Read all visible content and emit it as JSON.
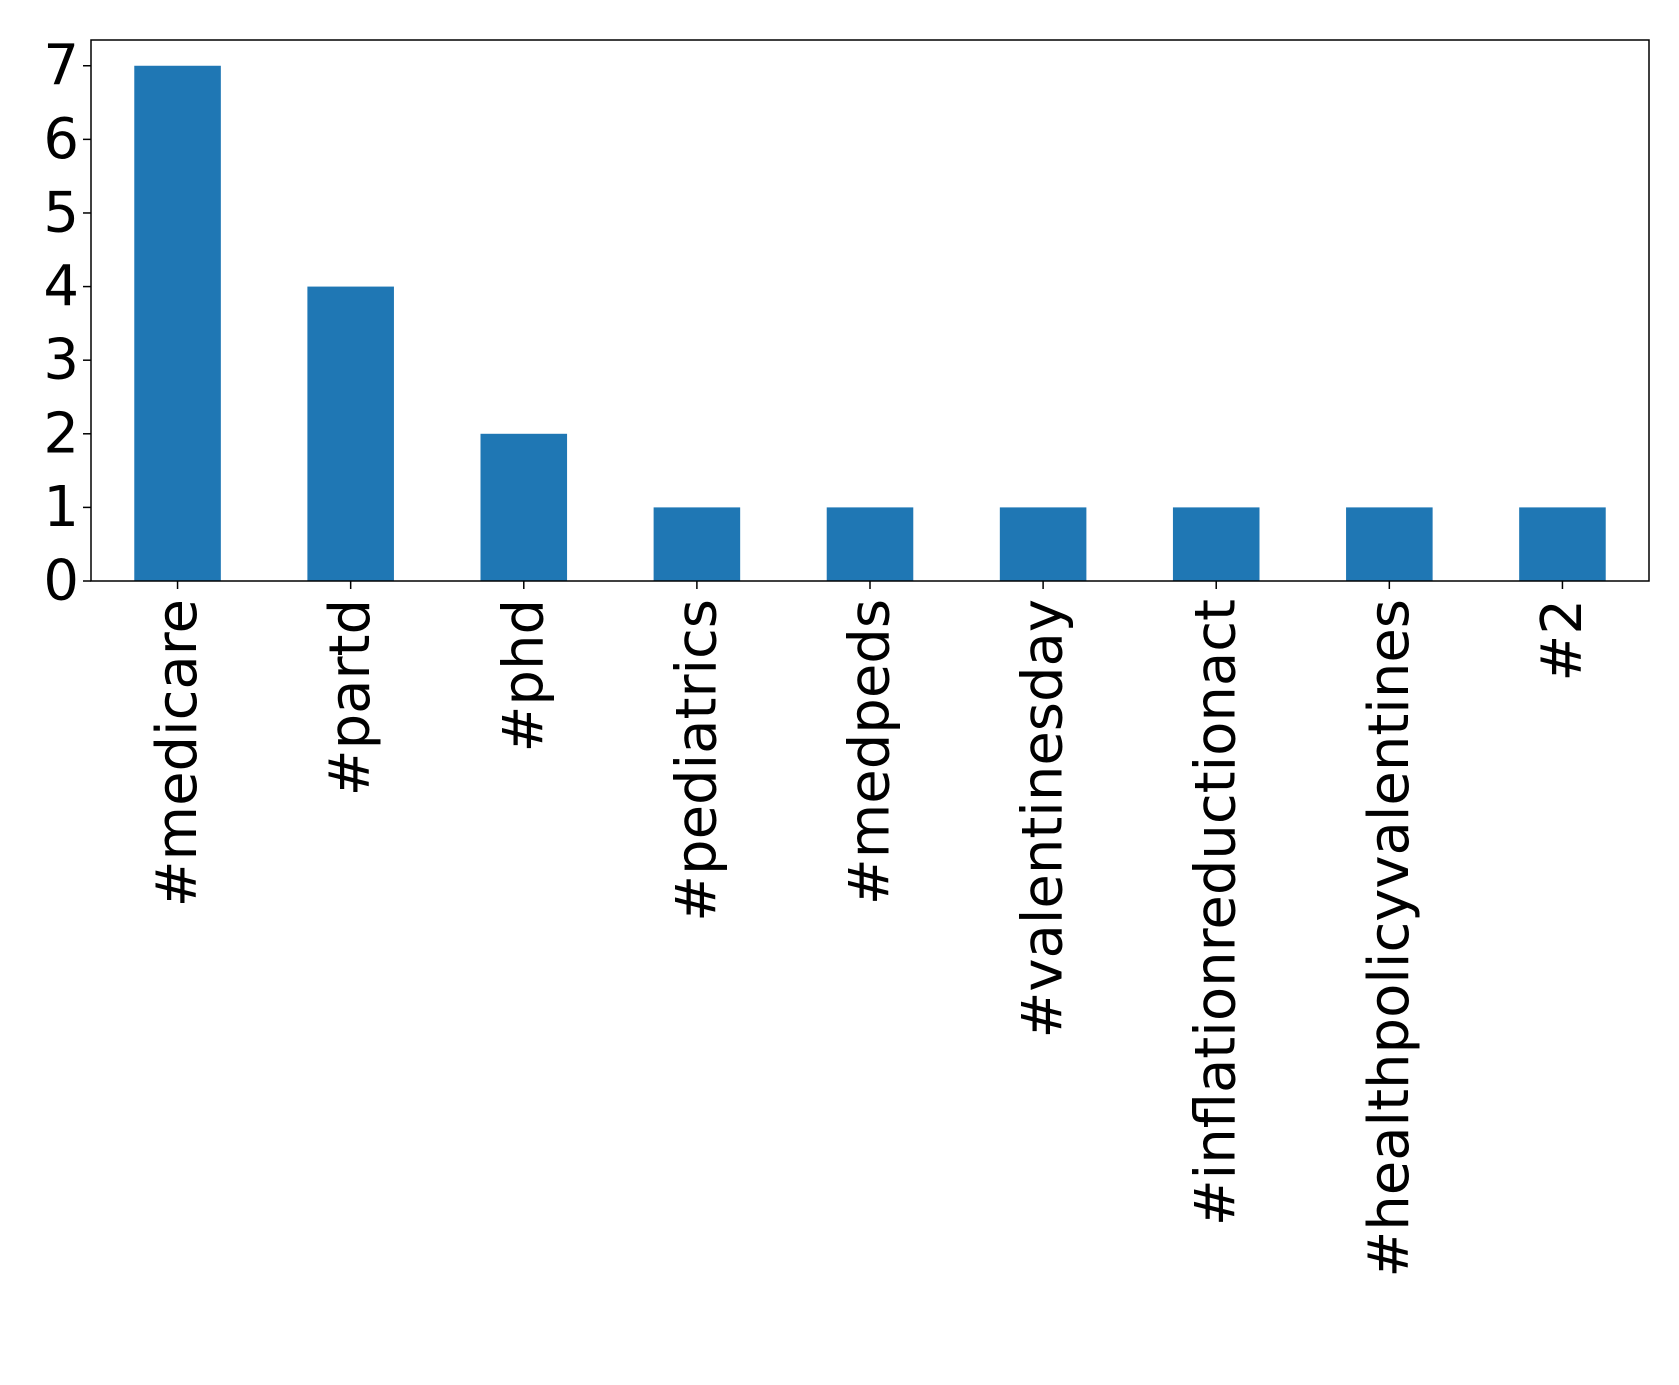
{
  "chart_data": {
    "type": "bar",
    "title": "",
    "xlabel": "",
    "ylabel": "",
    "categories": [
      "#medicare",
      "#partd",
      "#phd",
      "#pediatrics",
      "#medpeds",
      "#valentinesday",
      "#inflationreductionact",
      "#healthpolicyvalentines",
      "#2"
    ],
    "values": [
      7,
      4,
      2,
      1,
      1,
      1,
      1,
      1,
      1
    ],
    "ylim": [
      0,
      7.35
    ],
    "yticks": [
      0,
      1,
      2,
      3,
      4,
      5,
      6,
      7
    ],
    "grid": false,
    "legend": "none",
    "colors": {
      "bar": "#1f77b4",
      "axis": "#000000",
      "background": "#ffffff"
    }
  }
}
